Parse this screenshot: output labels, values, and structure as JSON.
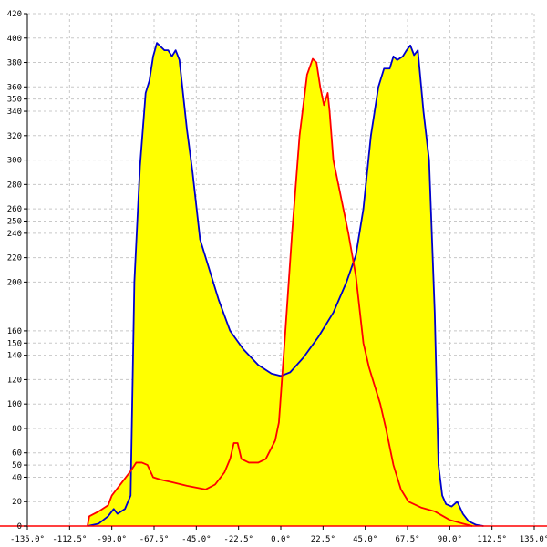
{
  "chart_data": {
    "type": "area",
    "x_unit": "degrees",
    "xlim": [
      -135,
      135
    ],
    "ylim": [
      0,
      420
    ],
    "x_ticks": [
      -135,
      -112.5,
      -90,
      -67.5,
      -45,
      -22.5,
      0,
      22.5,
      45,
      67.5,
      90,
      112.5,
      135
    ],
    "x_tick_labels": [
      "-135.0°",
      "-112.5°",
      "-90.0°",
      "-67.5°",
      "-45.0°",
      "-22.5°",
      "0.0°",
      "22.5°",
      "45.0°",
      "67.5°",
      "90.0°",
      "112.5°",
      "135.0°"
    ],
    "y_ticks": [
      0,
      20,
      40,
      50,
      60,
      80,
      100,
      120,
      140,
      150,
      160,
      200,
      220,
      240,
      250,
      260,
      280,
      300,
      320,
      340,
      350,
      360,
      380,
      400,
      420
    ],
    "y_tick_labels": [
      "0",
      "20",
      "40",
      "50",
      "60",
      "80",
      "100",
      "120",
      "140",
      "150",
      "160",
      "200",
      "220",
      "240",
      "250",
      "260",
      "280",
      "300",
      "320",
      "340",
      "350",
      "360",
      "380",
      "400",
      "420"
    ],
    "grid": true,
    "fill_color": "#ffff00",
    "series": [
      {
        "color": "#0000cc",
        "points": [
          [
            -103,
            0
          ],
          [
            -97,
            2
          ],
          [
            -92,
            8
          ],
          [
            -89,
            14
          ],
          [
            -87,
            10
          ],
          [
            -83,
            14
          ],
          [
            -80,
            25
          ],
          [
            -78,
            200
          ],
          [
            -75,
            295
          ],
          [
            -72,
            355
          ],
          [
            -70,
            365
          ],
          [
            -68,
            385
          ],
          [
            -66,
            396
          ],
          [
            -64,
            393
          ],
          [
            -62,
            390
          ],
          [
            -60,
            390
          ],
          [
            -58,
            385
          ],
          [
            -56,
            390
          ],
          [
            -54,
            382
          ],
          [
            -50,
            325
          ],
          [
            -47,
            290
          ],
          [
            -43,
            235
          ],
          [
            -38,
            210
          ],
          [
            -33,
            185
          ],
          [
            -27,
            160
          ],
          [
            -20,
            145
          ],
          [
            -12,
            132
          ],
          [
            -5,
            125
          ],
          [
            0,
            123
          ],
          [
            5,
            126
          ],
          [
            12,
            138
          ],
          [
            20,
            155
          ],
          [
            28,
            175
          ],
          [
            35,
            200
          ],
          [
            40,
            222
          ],
          [
            44,
            260
          ],
          [
            48,
            320
          ],
          [
            52,
            360
          ],
          [
            55,
            375
          ],
          [
            58,
            375
          ],
          [
            60,
            385
          ],
          [
            62,
            382
          ],
          [
            65,
            385
          ],
          [
            67,
            390
          ],
          [
            69,
            394
          ],
          [
            71,
            386
          ],
          [
            73,
            390
          ],
          [
            76,
            340
          ],
          [
            79,
            300
          ],
          [
            82,
            175
          ],
          [
            84,
            50
          ],
          [
            86,
            25
          ],
          [
            88,
            18
          ],
          [
            91,
            16
          ],
          [
            94,
            20
          ],
          [
            97,
            10
          ],
          [
            100,
            4
          ],
          [
            104,
            1
          ],
          [
            108,
            0
          ]
        ]
      },
      {
        "color": "#ff0000",
        "points": [
          [
            -103,
            0
          ],
          [
            -102,
            8
          ],
          [
            -97,
            12
          ],
          [
            -92,
            17
          ],
          [
            -90,
            25
          ],
          [
            -85,
            35
          ],
          [
            -80,
            45
          ],
          [
            -77,
            52
          ],
          [
            -74,
            52
          ],
          [
            -71,
            50
          ],
          [
            -68,
            40
          ],
          [
            -64,
            38
          ],
          [
            -58,
            36
          ],
          [
            -50,
            33
          ],
          [
            -40,
            30
          ],
          [
            -35,
            34
          ],
          [
            -30,
            44
          ],
          [
            -27,
            55
          ],
          [
            -25,
            68
          ],
          [
            -23,
            68
          ],
          [
            -21,
            55
          ],
          [
            -17,
            52
          ],
          [
            -12,
            52
          ],
          [
            -8,
            55
          ],
          [
            -3,
            70
          ],
          [
            -1,
            85
          ],
          [
            2,
            150
          ],
          [
            6,
            240
          ],
          [
            10,
            320
          ],
          [
            14,
            370
          ],
          [
            17,
            383
          ],
          [
            19,
            380
          ],
          [
            21,
            360
          ],
          [
            23,
            345
          ],
          [
            25,
            355
          ],
          [
            26,
            340
          ],
          [
            28,
            300
          ],
          [
            32,
            270
          ],
          [
            36,
            240
          ],
          [
            40,
            205
          ],
          [
            44,
            150
          ],
          [
            47,
            130
          ],
          [
            50,
            115
          ],
          [
            53,
            100
          ],
          [
            56,
            80
          ],
          [
            60,
            50
          ],
          [
            64,
            30
          ],
          [
            68,
            20
          ],
          [
            75,
            15
          ],
          [
            82,
            12
          ],
          [
            90,
            5
          ],
          [
            97,
            2
          ],
          [
            102,
            0
          ]
        ]
      }
    ]
  }
}
